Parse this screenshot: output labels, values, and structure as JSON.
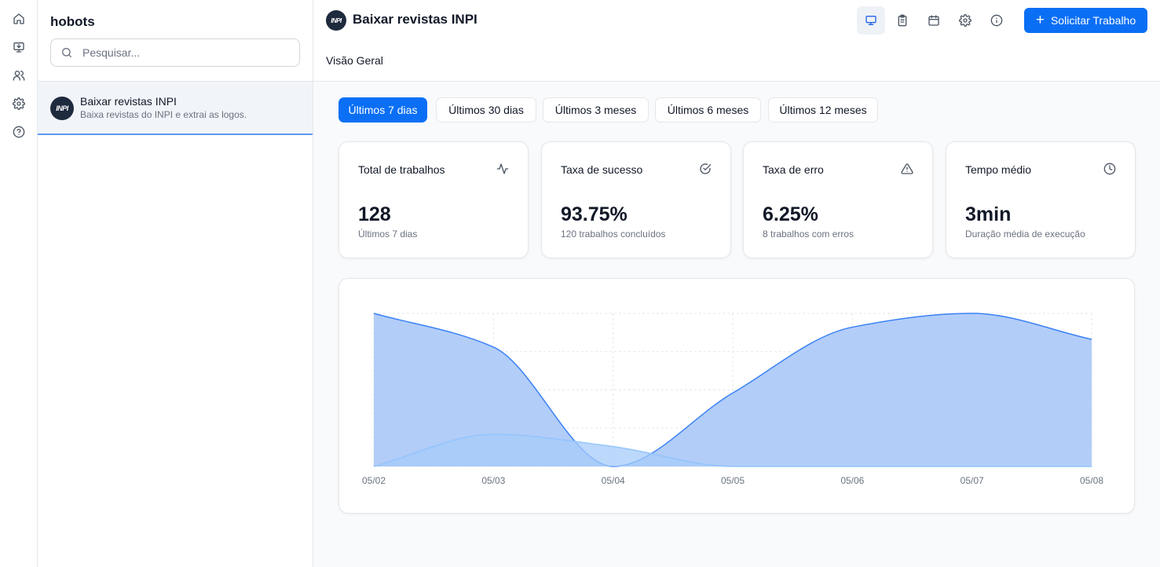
{
  "app": {
    "name": "hobots"
  },
  "rail": {
    "items": [
      "home-icon",
      "monitor-download-icon",
      "users-icon",
      "gear-icon",
      "help-icon"
    ]
  },
  "sidebar": {
    "search_placeholder": "Pesquisar...",
    "bots": [
      {
        "title": "Baixar revistas INPI",
        "description": "Baixa revistas do INPI e extrai as logos.",
        "logo_text": "INPI"
      }
    ]
  },
  "header": {
    "title": "Baixar revistas INPI",
    "logo_text": "INPI",
    "tab": "Visão Geral",
    "icons": [
      "monitor-icon",
      "clipboard-icon",
      "calendar-icon",
      "gear-icon",
      "info-icon"
    ],
    "request_button": "Solicitar Trabalho"
  },
  "ranges": {
    "selected": "Últimos 7 dias",
    "items": [
      "Últimos 7 dias",
      "Últimos 30 dias",
      "Últimos 3 meses",
      "Últimos 6 meses",
      "Últimos 12 meses"
    ]
  },
  "stats": [
    {
      "title": "Total de trabalhos",
      "value": "128",
      "subtitle": "Últimos 7 dias",
      "icon": "activity-icon"
    },
    {
      "title": "Taxa de sucesso",
      "value": "93.75%",
      "subtitle": "120 trabalhos concluídos",
      "icon": "check-circle-icon"
    },
    {
      "title": "Taxa de erro",
      "value": "6.25%",
      "subtitle": "8 trabalhos com erros",
      "icon": "warning-icon"
    },
    {
      "title": "Tempo médio",
      "value": "3min",
      "subtitle": "Duração média de execução",
      "icon": "clock-icon"
    }
  ],
  "chart_data": {
    "type": "area",
    "title": "",
    "xlabel": "",
    "ylabel": "",
    "categories": [
      "05/02",
      "05/03",
      "05/04",
      "05/05",
      "05/06",
      "05/07",
      "05/08"
    ],
    "ylim": [
      0,
      100
    ],
    "grid": true,
    "legend": "none",
    "series": [
      {
        "values": [
          100,
          78,
          0,
          48,
          91,
          100,
          83
        ],
        "color": "#3b82f6",
        "fill": "#aecaf8"
      },
      {
        "values": [
          0,
          21,
          13,
          0,
          0,
          0,
          0
        ],
        "color": "#93c5fd",
        "fill": "#a6cbfa"
      }
    ]
  }
}
